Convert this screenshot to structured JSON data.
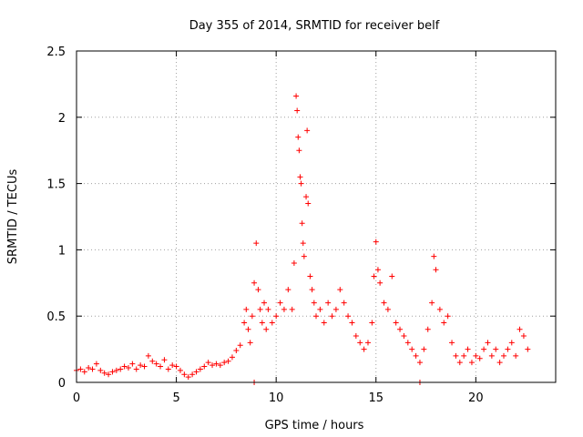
{
  "chart_data": {
    "type": "scatter",
    "title": "Day 355 of 2014, SRMTID for receiver belf",
    "xlabel": "GPS time / hours",
    "ylabel": "SRMTID / TECUs",
    "xlim": [
      0,
      24
    ],
    "ylim": [
      0,
      2.5
    ],
    "grid": true,
    "marker": "+",
    "color": "#ff0000",
    "xticks": [
      {
        "value": 0,
        "label": "0"
      },
      {
        "value": 5,
        "label": "5"
      },
      {
        "value": 10,
        "label": "10"
      },
      {
        "value": 15,
        "label": "15"
      },
      {
        "value": 20,
        "label": "20"
      }
    ],
    "yticks": [
      {
        "value": 0,
        "label": "0"
      },
      {
        "value": 0.5,
        "label": "0.5"
      },
      {
        "value": 1,
        "label": "1"
      },
      {
        "value": 1.5,
        "label": "1.5"
      },
      {
        "value": 2,
        "label": "2"
      },
      {
        "value": 2.5,
        "label": "2.5"
      }
    ],
    "series": [
      {
        "name": "SRMTID",
        "points": [
          [
            0.0,
            0.09
          ],
          [
            0.2,
            0.1
          ],
          [
            0.4,
            0.08
          ],
          [
            0.6,
            0.11
          ],
          [
            0.8,
            0.1
          ],
          [
            1.0,
            0.14
          ],
          [
            1.2,
            0.09
          ],
          [
            1.4,
            0.07
          ],
          [
            1.6,
            0.06
          ],
          [
            1.8,
            0.08
          ],
          [
            2.0,
            0.09
          ],
          [
            2.2,
            0.1
          ],
          [
            2.4,
            0.12
          ],
          [
            2.6,
            0.11
          ],
          [
            2.8,
            0.14
          ],
          [
            3.0,
            0.1
          ],
          [
            3.2,
            0.13
          ],
          [
            3.4,
            0.12
          ],
          [
            3.6,
            0.2
          ],
          [
            3.8,
            0.16
          ],
          [
            4.0,
            0.14
          ],
          [
            4.2,
            0.12
          ],
          [
            4.4,
            0.17
          ],
          [
            4.6,
            0.1
          ],
          [
            4.8,
            0.13
          ],
          [
            5.0,
            0.12
          ],
          [
            5.2,
            0.09
          ],
          [
            5.4,
            0.06
          ],
          [
            5.6,
            0.04
          ],
          [
            5.8,
            0.06
          ],
          [
            6.0,
            0.08
          ],
          [
            6.2,
            0.1
          ],
          [
            6.4,
            0.12
          ],
          [
            6.6,
            0.15
          ],
          [
            6.8,
            0.13
          ],
          [
            7.0,
            0.14
          ],
          [
            7.2,
            0.13
          ],
          [
            7.4,
            0.15
          ],
          [
            7.6,
            0.16
          ],
          [
            7.8,
            0.19
          ],
          [
            8.0,
            0.24
          ],
          [
            8.2,
            0.28
          ],
          [
            8.4,
            0.45
          ],
          [
            8.5,
            0.55
          ],
          [
            8.6,
            0.4
          ],
          [
            8.7,
            0.3
          ],
          [
            8.8,
            0.5
          ],
          [
            8.9,
            0.75
          ],
          [
            9.0,
            1.05
          ],
          [
            9.1,
            0.7
          ],
          [
            9.2,
            0.55
          ],
          [
            9.3,
            0.45
          ],
          [
            9.4,
            0.6
          ],
          [
            9.5,
            0.4
          ],
          [
            9.6,
            0.55
          ],
          [
            9.8,
            0.45
          ],
          [
            10.0,
            0.5
          ],
          [
            10.2,
            0.6
          ],
          [
            10.4,
            0.55
          ],
          [
            10.6,
            0.7
          ],
          [
            10.8,
            0.55
          ],
          [
            10.9,
            0.9
          ],
          [
            11.0,
            2.16
          ],
          [
            11.05,
            2.05
          ],
          [
            11.1,
            1.85
          ],
          [
            11.15,
            1.75
          ],
          [
            11.2,
            1.55
          ],
          [
            11.25,
            1.5
          ],
          [
            11.3,
            1.2
          ],
          [
            11.35,
            1.05
          ],
          [
            11.4,
            0.95
          ],
          [
            11.5,
            1.4
          ],
          [
            11.55,
            1.9
          ],
          [
            11.6,
            1.35
          ],
          [
            11.7,
            0.8
          ],
          [
            11.8,
            0.7
          ],
          [
            11.9,
            0.6
          ],
          [
            12.0,
            0.5
          ],
          [
            12.2,
            0.55
          ],
          [
            12.4,
            0.45
          ],
          [
            12.6,
            0.6
          ],
          [
            12.8,
            0.5
          ],
          [
            13.0,
            0.55
          ],
          [
            13.2,
            0.7
          ],
          [
            13.4,
            0.6
          ],
          [
            13.6,
            0.5
          ],
          [
            13.8,
            0.45
          ],
          [
            14.0,
            0.35
          ],
          [
            14.2,
            0.3
          ],
          [
            14.4,
            0.25
          ],
          [
            14.6,
            0.3
          ],
          [
            14.8,
            0.45
          ],
          [
            14.9,
            0.8
          ],
          [
            15.0,
            1.06
          ],
          [
            15.1,
            0.85
          ],
          [
            15.2,
            0.75
          ],
          [
            15.4,
            0.6
          ],
          [
            15.6,
            0.55
          ],
          [
            15.8,
            0.8
          ],
          [
            16.0,
            0.45
          ],
          [
            16.2,
            0.4
          ],
          [
            16.4,
            0.35
          ],
          [
            16.6,
            0.3
          ],
          [
            16.8,
            0.25
          ],
          [
            17.0,
            0.2
          ],
          [
            17.2,
            0.15
          ],
          [
            17.4,
            0.25
          ],
          [
            17.6,
            0.4
          ],
          [
            17.8,
            0.6
          ],
          [
            17.9,
            0.95
          ],
          [
            18.0,
            0.85
          ],
          [
            18.2,
            0.55
          ],
          [
            18.4,
            0.45
          ],
          [
            18.6,
            0.5
          ],
          [
            18.8,
            0.3
          ],
          [
            19.0,
            0.2
          ],
          [
            19.2,
            0.15
          ],
          [
            19.4,
            0.2
          ],
          [
            19.6,
            0.25
          ],
          [
            19.8,
            0.15
          ],
          [
            20.0,
            0.2
          ],
          [
            20.2,
            0.18
          ],
          [
            20.4,
            0.25
          ],
          [
            20.6,
            0.3
          ],
          [
            20.8,
            0.2
          ],
          [
            21.0,
            0.25
          ],
          [
            21.2,
            0.15
          ],
          [
            21.4,
            0.2
          ],
          [
            21.6,
            0.25
          ],
          [
            21.8,
            0.3
          ],
          [
            22.0,
            0.2
          ],
          [
            22.2,
            0.4
          ],
          [
            22.4,
            0.35
          ],
          [
            22.6,
            0.25
          ],
          [
            8.9,
            0.0
          ],
          [
            17.2,
            0.0
          ]
        ]
      }
    ]
  }
}
